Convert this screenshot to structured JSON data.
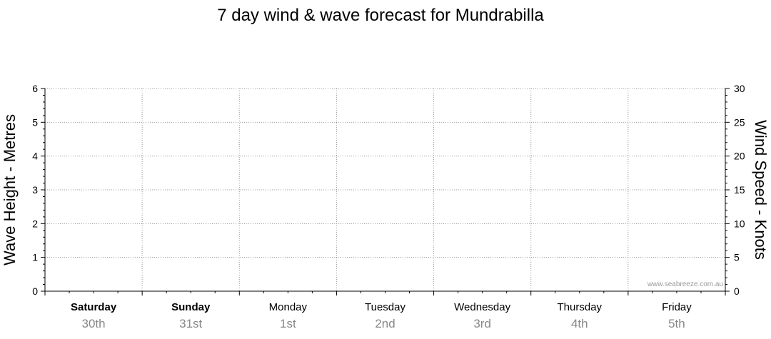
{
  "chart_data": {
    "type": "line",
    "title": "7 day wind & wave forecast for Mundrabilla",
    "ylabel_left": "Wave Height - Metres",
    "ylabel_right": "Wind Speed - Knots",
    "ylim_left": [
      0,
      6
    ],
    "ylim_right": [
      0,
      30
    ],
    "yticks_left": [
      "0",
      "1",
      "2",
      "3",
      "4",
      "5",
      "6"
    ],
    "yticks_right": [
      "0",
      "5",
      "10",
      "15",
      "20",
      "25",
      "30"
    ],
    "days": [
      {
        "day": "Saturday",
        "date": "30th",
        "bold": true
      },
      {
        "day": "Sunday",
        "date": "31st",
        "bold": true
      },
      {
        "day": "Monday",
        "date": "1st",
        "bold": false
      },
      {
        "day": "Tuesday",
        "date": "2nd",
        "bold": false
      },
      {
        "day": "Wednesday",
        "date": "3rd",
        "bold": false
      },
      {
        "day": "Thursday",
        "date": "4th",
        "bold": false
      },
      {
        "day": "Friday",
        "date": "5th",
        "bold": false
      }
    ],
    "series": [],
    "grid": true,
    "watermark": "www.seabreeze.com.au"
  }
}
